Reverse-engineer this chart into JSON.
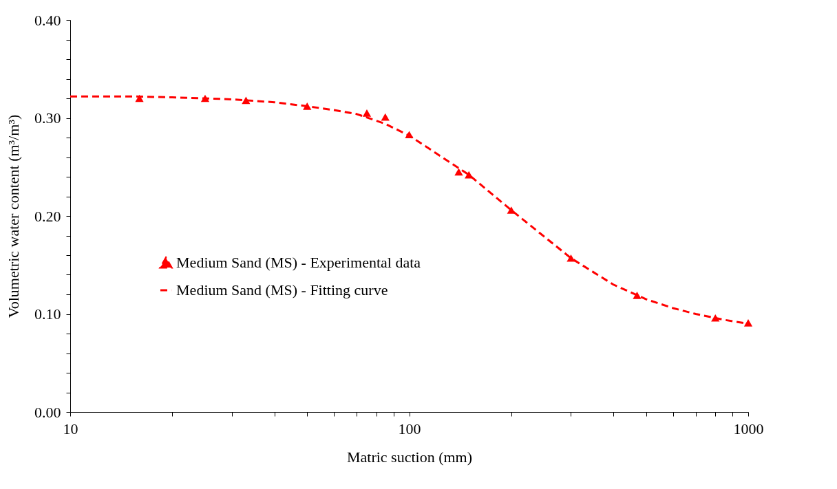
{
  "chart_data": {
    "type": "line",
    "xlabel": "Matric suction (mm)",
    "ylabel": "Volumetric water content (m³/m³)",
    "log": "x",
    "grid": false,
    "legend": "bottom",
    "xlim": [
      10,
      1000
    ],
    "ylim": [
      0,
      0.4
    ],
    "xticks": [
      10,
      {
        "value": 20,
        "label": null
      },
      {
        "value": 30,
        "label": null
      },
      {
        "value": 40,
        "label": null
      },
      {
        "value": 50,
        "label": null
      },
      {
        "value": 60,
        "label": null
      },
      {
        "value": 70,
        "label": null
      },
      {
        "value": 80,
        "label": null
      },
      {
        "value": 90,
        "label": null
      },
      100,
      {
        "value": 200,
        "label": null
      },
      {
        "value": 300,
        "label": null
      },
      {
        "value": 400,
        "label": null
      },
      {
        "value": 500,
        "label": null
      },
      {
        "value": 600,
        "label": null
      },
      {
        "value": 700,
        "label": null
      },
      {
        "value": 800,
        "label": null
      },
      {
        "value": 900,
        "label": null
      },
      1000
    ],
    "yticks": [
      {
        "value": 0,
        "label": "0.00"
      },
      {
        "value": 0.02,
        "label": null
      },
      {
        "value": 0.04,
        "label": null
      },
      {
        "value": 0.06,
        "label": null
      },
      {
        "value": 0.08,
        "label": null
      },
      {
        "value": 0.1,
        "label": "0.10"
      },
      {
        "value": 0.12,
        "label": null
      },
      {
        "value": 0.14,
        "label": null
      },
      {
        "value": 0.16,
        "label": null
      },
      {
        "value": 0.18,
        "label": null
      },
      {
        "value": 0.2,
        "label": "0.20"
      },
      {
        "value": 0.22,
        "label": null
      },
      {
        "value": 0.24,
        "label": null
      },
      {
        "value": 0.26,
        "label": null
      },
      {
        "value": 0.28,
        "label": null
      },
      {
        "value": 0.3,
        "label": "0.30"
      },
      {
        "value": 0.32,
        "label": null
      },
      {
        "value": 0.34,
        "label": null
      },
      {
        "value": 0.36,
        "label": null
      },
      {
        "value": 0.38,
        "label": null
      },
      {
        "value": 0.4,
        "label": "0.40"
      }
    ],
    "series": [
      {
        "name": "Medium Sand (MS) - Experimental data",
        "type": "scatter",
        "marker": "triangle",
        "color": "#ff0000",
        "x": [
          16,
          25,
          33,
          50,
          75,
          85,
          100,
          140,
          150,
          200,
          300,
          470,
          800,
          1000
        ],
        "values": [
          0.32,
          0.32,
          0.318,
          0.312,
          0.305,
          0.301,
          0.283,
          0.245,
          0.242,
          0.206,
          0.157,
          0.119,
          0.096,
          0.091
        ]
      },
      {
        "name": "Medium Sand (MS) - Fitting curve",
        "type": "line",
        "line_style": "dashed",
        "color": "#ff0000",
        "x": [
          10,
          15,
          20,
          30,
          40,
          50,
          60,
          70,
          85,
          100,
          120,
          150,
          200,
          250,
          300,
          400,
          500,
          600,
          700,
          850,
          1000
        ],
        "values": [
          0.322,
          0.322,
          0.321,
          0.319,
          0.316,
          0.312,
          0.308,
          0.304,
          0.294,
          0.282,
          0.264,
          0.242,
          0.206,
          0.179,
          0.157,
          0.13,
          0.115,
          0.106,
          0.1,
          0.094,
          0.09
        ]
      }
    ]
  }
}
